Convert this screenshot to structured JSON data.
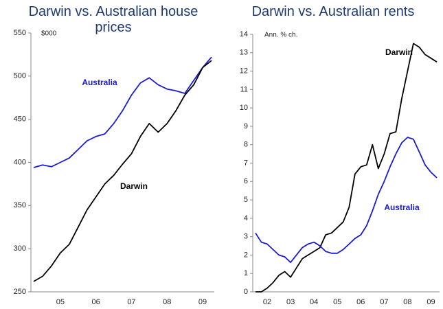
{
  "chart_data": [
    {
      "type": "line",
      "title": "Darwin vs. Australian house prices",
      "unit_label": "$000",
      "categories": [
        null,
        null,
        null,
        "05",
        null,
        null,
        null,
        "06",
        null,
        null,
        null,
        "07",
        null,
        null,
        null,
        "08",
        null,
        null,
        null,
        "09",
        null
      ],
      "series": [
        {
          "name": "Australia",
          "color": "#1a1ad4",
          "values": [
            394,
            397,
            395,
            400,
            405,
            415,
            425,
            430,
            433,
            445,
            460,
            478,
            492,
            498,
            490,
            485,
            483,
            480,
            495,
            510,
            522
          ]
        },
        {
          "name": "Darwin",
          "color": "#000000",
          "values": [
            262,
            268,
            280,
            295,
            305,
            325,
            345,
            360,
            375,
            385,
            398,
            410,
            430,
            445,
            435,
            445,
            460,
            478,
            490,
            510,
            518
          ]
        }
      ],
      "ylim": [
        250,
        550
      ],
      "yticks": [
        250,
        300,
        350,
        400,
        450,
        500,
        550
      ]
    },
    {
      "type": "line",
      "title": "Darwin vs. Australian rents",
      "unit_label": "Ann. % ch.",
      "categories": [
        null,
        null,
        "02",
        null,
        null,
        null,
        "03",
        null,
        null,
        null,
        "04",
        null,
        null,
        null,
        "05",
        null,
        null,
        null,
        "06",
        null,
        null,
        null,
        "07",
        null,
        null,
        null,
        "08",
        null,
        null,
        null,
        "09",
        null
      ],
      "series": [
        {
          "name": "Darwin",
          "color": "#000000",
          "values": [
            0,
            0,
            0.2,
            0.5,
            0.9,
            1.1,
            0.8,
            1.3,
            1.8,
            2.0,
            2.2,
            2.4,
            3.1,
            3.2,
            3.5,
            3.8,
            4.6,
            6.4,
            6.8,
            6.9,
            8.0,
            6.7,
            7.5,
            8.6,
            8.7,
            10.5,
            12.0,
            13.5,
            13.3,
            12.9,
            12.7,
            12.5
          ]
        },
        {
          "name": "Australia",
          "color": "#1a1ad4",
          "values": [
            3.2,
            2.7,
            2.6,
            2.3,
            2.0,
            1.9,
            1.6,
            2.0,
            2.4,
            2.6,
            2.7,
            2.5,
            2.2,
            2.1,
            2.1,
            2.3,
            2.6,
            2.9,
            3.1,
            3.6,
            4.4,
            5.3,
            6.0,
            6.8,
            7.5,
            8.1,
            8.4,
            8.3,
            7.6,
            6.9,
            6.5,
            6.2
          ]
        }
      ],
      "ylim": [
        0,
        14
      ],
      "yticks": [
        0,
        1,
        2,
        3,
        4,
        5,
        6,
        7,
        8,
        9,
        10,
        11,
        12,
        13,
        14
      ]
    }
  ]
}
